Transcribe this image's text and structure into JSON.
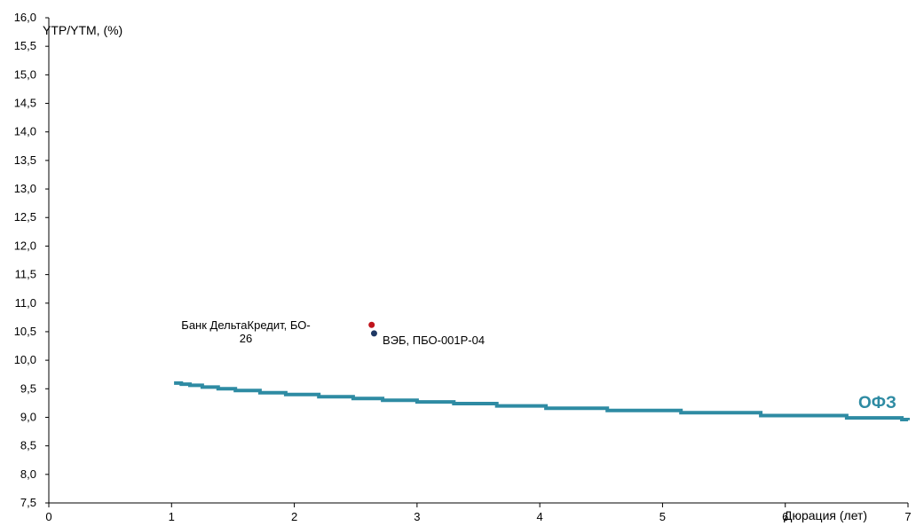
{
  "chart_data": {
    "type": "line",
    "ylabel": "YTP/YTM, (%)",
    "xlabel": "Дюрация (лет)",
    "xlim": [
      0,
      7
    ],
    "ylim": [
      7.5,
      16.0
    ],
    "x_ticks": [
      "0",
      "1",
      "2",
      "3",
      "4",
      "5",
      "6",
      "7"
    ],
    "y_ticks": [
      "7,5",
      "8,0",
      "8,5",
      "9,0",
      "9,5",
      "10,0",
      "10,5",
      "11,0",
      "11,5",
      "12,0",
      "12,5",
      "13,0",
      "13,5",
      "14,0",
      "14,5",
      "15,0",
      "15,5",
      "16,0"
    ],
    "grid": false,
    "series": [
      {
        "name": "ОФЗ",
        "kind": "line",
        "color": "#2e8ba3",
        "x": [
          1.02,
          1.08,
          1.15,
          1.25,
          1.38,
          1.52,
          1.72,
          1.93,
          2.2,
          2.48,
          2.72,
          3.0,
          3.3,
          3.65,
          4.05,
          4.55,
          5.15,
          5.8,
          6.5,
          6.95,
          7.0
        ],
        "y": [
          9.6,
          9.58,
          9.56,
          9.53,
          9.5,
          9.47,
          9.43,
          9.4,
          9.36,
          9.33,
          9.3,
          9.27,
          9.24,
          9.2,
          9.16,
          9.12,
          9.08,
          9.03,
          8.99,
          8.96,
          8.95
        ]
      },
      {
        "name": "Банк ДельтаКредит, БО-26",
        "kind": "point",
        "color": "#c0141c",
        "x": [
          2.63
        ],
        "y": [
          10.62
        ]
      },
      {
        "name": "ВЭБ, ПБО-001Р-04",
        "kind": "point",
        "color": "#1f3864",
        "x": [
          2.65
        ],
        "y": [
          10.47
        ]
      }
    ],
    "annotations": [
      {
        "text_lines": [
          "Банк ДельтаКредит, БО-",
          "26"
        ]
      },
      {
        "text_lines": [
          "ВЭБ, ПБО-001Р-04"
        ]
      },
      {
        "text_lines": [
          "ОФЗ"
        ]
      }
    ]
  }
}
